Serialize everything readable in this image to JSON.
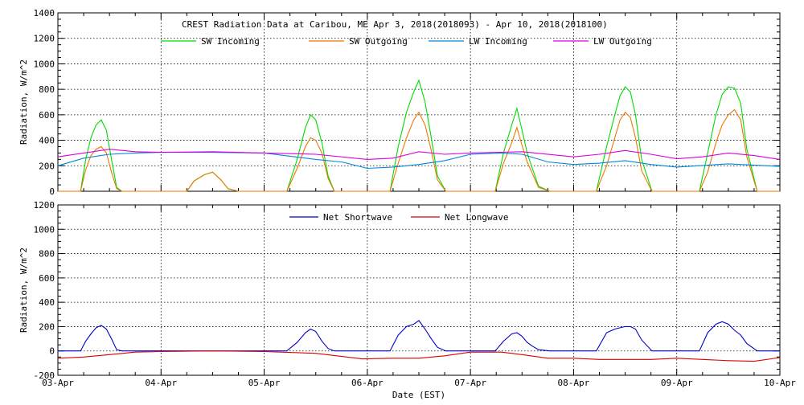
{
  "chart_data": [
    {
      "type": "line",
      "title": "CREST Radiation Data at Caribou, ME   Apr  3, 2018(2018093) - Apr 10, 2018(2018100)",
      "xlabel": "",
      "ylabel": "Radiation, W/m^2",
      "x_unit": "days since 03-Apr",
      "xlim": [
        0,
        7
      ],
      "ylim": [
        0,
        1400
      ],
      "yticks": [
        0,
        200,
        400,
        600,
        800,
        1000,
        1200,
        1400
      ],
      "grid": true,
      "legend_position": "top",
      "series": [
        {
          "name": "SW Incoming",
          "color": "#00dd00",
          "x": [
            0.0,
            0.22,
            0.27,
            0.32,
            0.37,
            0.42,
            0.47,
            0.52,
            0.57,
            0.62,
            0.72,
            1.0,
            1.25,
            1.32,
            1.42,
            1.5,
            1.58,
            1.65,
            1.75,
            2.0,
            2.22,
            2.32,
            2.4,
            2.45,
            2.5,
            2.56,
            2.62,
            2.68,
            2.77,
            3.0,
            3.22,
            3.3,
            3.38,
            3.45,
            3.5,
            3.56,
            3.62,
            3.68,
            3.76,
            4.0,
            4.24,
            4.32,
            4.4,
            4.45,
            4.5,
            4.55,
            4.6,
            4.66,
            4.77,
            5.0,
            5.22,
            5.32,
            5.4,
            5.45,
            5.5,
            5.55,
            5.6,
            5.66,
            5.76,
            6.0,
            6.22,
            6.3,
            6.38,
            6.44,
            6.5,
            6.56,
            6.62,
            6.68,
            6.78,
            7.0
          ],
          "values": [
            0,
            0,
            250,
            420,
            520,
            560,
            480,
            250,
            30,
            0,
            0,
            0,
            0,
            80,
            130,
            150,
            90,
            20,
            0,
            0,
            0,
            250,
            500,
            600,
            560,
            380,
            120,
            0,
            0,
            0,
            0,
            350,
            620,
            780,
            870,
            700,
            420,
            120,
            0,
            0,
            0,
            300,
            520,
            650,
            480,
            300,
            180,
            40,
            0,
            0,
            0,
            350,
            600,
            750,
            820,
            780,
            600,
            250,
            0,
            0,
            0,
            300,
            600,
            760,
            820,
            810,
            690,
            330,
            0,
            0
          ]
        },
        {
          "name": "SW Outgoing",
          "color": "#ee7700",
          "x": [
            0.0,
            0.22,
            0.27,
            0.32,
            0.37,
            0.42,
            0.47,
            0.52,
            0.57,
            0.62,
            0.72,
            1.0,
            1.25,
            1.32,
            1.42,
            1.5,
            1.58,
            1.65,
            1.75,
            2.0,
            2.22,
            2.32,
            2.4,
            2.45,
            2.5,
            2.56,
            2.62,
            2.68,
            2.77,
            3.0,
            3.22,
            3.3,
            3.38,
            3.45,
            3.5,
            3.56,
            3.62,
            3.68,
            3.76,
            4.0,
            4.24,
            4.32,
            4.4,
            4.45,
            4.5,
            4.55,
            4.6,
            4.66,
            4.77,
            5.0,
            5.22,
            5.32,
            5.4,
            5.45,
            5.5,
            5.55,
            5.6,
            5.66,
            5.76,
            6.0,
            6.22,
            6.3,
            6.38,
            6.44,
            6.5,
            6.56,
            6.62,
            6.68,
            6.78,
            7.0
          ],
          "values": [
            0,
            0,
            170,
            280,
            330,
            350,
            300,
            150,
            20,
            0,
            0,
            0,
            0,
            80,
            130,
            150,
            90,
            20,
            0,
            0,
            0,
            180,
            350,
            420,
            400,
            300,
            100,
            0,
            0,
            0,
            0,
            220,
            420,
            560,
            620,
            520,
            320,
            90,
            0,
            0,
            0,
            220,
            380,
            500,
            360,
            230,
            140,
            30,
            0,
            0,
            0,
            200,
            420,
            560,
            620,
            580,
            420,
            160,
            0,
            0,
            0,
            150,
            380,
            520,
            600,
            640,
            560,
            270,
            0,
            0
          ]
        },
        {
          "name": "LW Incoming",
          "color": "#0088dd",
          "x": [
            0.0,
            0.25,
            0.5,
            0.75,
            1.0,
            1.5,
            2.0,
            2.3,
            2.5,
            2.75,
            3.0,
            3.25,
            3.5,
            3.75,
            4.0,
            4.3,
            4.5,
            4.75,
            5.0,
            5.25,
            5.5,
            5.75,
            6.0,
            6.5,
            7.0
          ],
          "values": [
            200,
            260,
            290,
            300,
            305,
            305,
            300,
            270,
            250,
            230,
            180,
            190,
            210,
            240,
            290,
            300,
            290,
            230,
            210,
            220,
            240,
            210,
            190,
            215,
            195
          ]
        },
        {
          "name": "LW Outgoing",
          "color": "#dd00dd",
          "x": [
            0.0,
            0.25,
            0.5,
            0.75,
            1.0,
            1.5,
            2.0,
            2.5,
            3.0,
            3.25,
            3.5,
            3.75,
            4.0,
            4.5,
            5.0,
            5.25,
            5.5,
            5.75,
            6.0,
            6.25,
            6.5,
            6.75,
            7.0
          ],
          "values": [
            270,
            300,
            330,
            310,
            305,
            310,
            300,
            290,
            250,
            260,
            310,
            290,
            300,
            310,
            270,
            290,
            320,
            290,
            255,
            270,
            300,
            280,
            250
          ]
        }
      ]
    },
    {
      "type": "line",
      "title": "",
      "xlabel": "Date (EST)",
      "ylabel": "Radiation, W/m^2",
      "x_unit": "days since 03-Apr",
      "xlim": [
        0,
        7
      ],
      "ylim": [
        -200,
        1200
      ],
      "yticks": [
        -200,
        0,
        200,
        400,
        600,
        800,
        1000,
        1200
      ],
      "categories": [
        "03-Apr",
        "04-Apr",
        "05-Apr",
        "06-Apr",
        "07-Apr",
        "08-Apr",
        "09-Apr",
        "10-Apr"
      ],
      "grid": true,
      "legend_position": "top",
      "series": [
        {
          "name": "Net Shortwave",
          "color": "#0000cc",
          "x": [
            0.0,
            0.22,
            0.27,
            0.32,
            0.37,
            0.42,
            0.47,
            0.52,
            0.57,
            0.62,
            0.72,
            1.0,
            1.25,
            1.32,
            1.42,
            1.5,
            1.58,
            1.65,
            1.75,
            2.0,
            2.22,
            2.32,
            2.4,
            2.45,
            2.5,
            2.56,
            2.62,
            2.68,
            2.77,
            3.0,
            3.22,
            3.3,
            3.38,
            3.45,
            3.5,
            3.56,
            3.62,
            3.68,
            3.76,
            4.0,
            4.24,
            4.32,
            4.4,
            4.45,
            4.5,
            4.55,
            4.6,
            4.66,
            4.77,
            5.0,
            5.22,
            5.32,
            5.4,
            5.45,
            5.5,
            5.55,
            5.6,
            5.66,
            5.76,
            6.0,
            6.22,
            6.3,
            6.38,
            6.44,
            6.5,
            6.56,
            6.62,
            6.68,
            6.78,
            7.0
          ],
          "values": [
            0,
            0,
            80,
            140,
            190,
            210,
            180,
            100,
            10,
            0,
            0,
            0,
            0,
            0,
            0,
            0,
            0,
            0,
            0,
            0,
            0,
            70,
            150,
            180,
            160,
            80,
            20,
            0,
            0,
            0,
            0,
            130,
            200,
            220,
            250,
            180,
            100,
            30,
            0,
            0,
            0,
            80,
            140,
            150,
            120,
            70,
            40,
            10,
            0,
            0,
            0,
            150,
            180,
            190,
            200,
            200,
            180,
            90,
            0,
            0,
            0,
            150,
            220,
            240,
            220,
            170,
            130,
            60,
            0,
            0
          ]
        },
        {
          "name": "Net Longwave",
          "color": "#dd0000",
          "x": [
            0.0,
            0.25,
            0.5,
            0.75,
            1.0,
            1.5,
            2.0,
            2.5,
            2.95,
            3.25,
            3.5,
            3.75,
            4.0,
            4.3,
            4.5,
            4.75,
            5.0,
            5.25,
            5.5,
            5.75,
            6.0,
            6.25,
            6.5,
            6.75,
            7.0
          ],
          "values": [
            -60,
            -50,
            -30,
            -10,
            -5,
            0,
            -5,
            -20,
            -65,
            -60,
            -60,
            -40,
            -10,
            -10,
            -30,
            -60,
            -60,
            -70,
            -70,
            -70,
            -60,
            -70,
            -80,
            -85,
            -55
          ]
        }
      ]
    }
  ]
}
